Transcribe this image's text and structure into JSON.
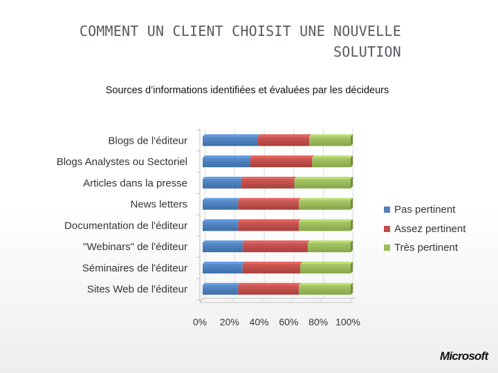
{
  "slide": {
    "title_line1": "COMMENT UN CLIENT CHOISIT UNE NOUVELLE",
    "title_line2": "SOLUTION",
    "subtitle": "Sources d’informations identifiées et évaluées par les décideurs",
    "logo_text": "Microsoft"
  },
  "chart_data": {
    "type": "bar",
    "orientation": "horizontal",
    "stacked": "100%",
    "categories": [
      "Blogs de l'éditeur",
      "Blogs Analystes ou Sectoriel",
      "Articles dans la presse",
      "News letters",
      "Documentation de l'éditeur",
      "\"Webinars\" de l'éditeur",
      "Séminaires de l'éditeur",
      "Sites Web de l'éditeur"
    ],
    "series": [
      {
        "name": "Pas pertinent",
        "color": "#4F81BD",
        "values": [
          37,
          32,
          26,
          24,
          24,
          27,
          27,
          24
        ]
      },
      {
        "name": "Assez pertinent",
        "color": "#C0504D",
        "values": [
          35,
          42,
          36,
          41,
          41,
          44,
          39,
          41
        ]
      },
      {
        "name": "Très pertinent",
        "color": "#9BBB59",
        "values": [
          28,
          26,
          38,
          35,
          35,
          29,
          34,
          35
        ]
      }
    ],
    "xticks": [
      "0%",
      "20%",
      "40%",
      "60%",
      "80%",
      "100%"
    ],
    "xlim": [
      0,
      100
    ],
    "grid": true,
    "legend_position": "right"
  }
}
